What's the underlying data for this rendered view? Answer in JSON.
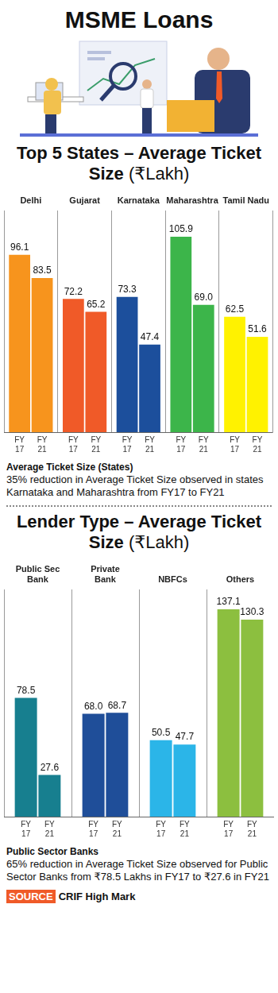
{
  "title": "MSME Loans",
  "chart_data": [
    {
      "type": "bar",
      "title": "Top 5 States – Average Ticket Size (₹Lakh)",
      "categories": [
        "Delhi",
        "Gujarat",
        "Karnataka",
        "Maharashtra",
        "Tamil Nadu"
      ],
      "series": [
        {
          "name": "FY 17",
          "values": [
            96.1,
            72.2,
            73.3,
            105.9,
            62.5
          ],
          "value_labels": [
            "96.1",
            "72.2",
            "73.3",
            "105.9",
            "62.5"
          ]
        },
        {
          "name": "FY 21",
          "values": [
            83.5,
            65.2,
            47.4,
            69.0,
            51.6
          ],
          "value_labels": [
            "83.5",
            "65.2",
            "47.4",
            "69.0",
            "51.6"
          ]
        }
      ],
      "colors": [
        "#f7941d",
        "#f05a28",
        "#1c4f9c",
        "#3cb54a",
        "#fff200"
      ],
      "ylim": [
        0,
        120
      ],
      "grid": true,
      "data_labels": true,
      "tick_labels": "x",
      "annotation": {
        "title": "Average Ticket Size (States)",
        "text": "35% reduction in Average Ticket Size observed in states Karnataka and Maharashtra from FY17 to FY21"
      }
    },
    {
      "type": "bar",
      "title": "Lender Type – Average Ticket Size (₹Lakh)",
      "categories": [
        "Public Sec Bank",
        "Private Bank",
        "NBFCs",
        "Others"
      ],
      "series": [
        {
          "name": "FY 17",
          "values": [
            78.5,
            68.0,
            50.5,
            137.1
          ],
          "value_labels": [
            "78.5",
            "68.0",
            "50.5",
            "137.1"
          ]
        },
        {
          "name": "FY 21",
          "values": [
            27.6,
            68.7,
            47.7,
            130.3
          ],
          "value_labels": [
            "27.6",
            "68.7",
            "47.7",
            "130.3"
          ]
        }
      ],
      "colors": [
        "#177f8f",
        "#1f4e99",
        "#2bb5e8",
        "#8cbf3f"
      ],
      "ylim": [
        0,
        150
      ],
      "grid": true,
      "data_labels": true,
      "tick_labels": "x",
      "annotation": {
        "title": "Public Sector Banks",
        "text": "65% reduction in Average Ticket Size observed for Public Sector Banks from ₹78.5 Lakhs in FY17 to ₹27.6 in FY21"
      }
    }
  ],
  "source": {
    "label": "SOURCE",
    "text": "CRIF High Mark"
  }
}
